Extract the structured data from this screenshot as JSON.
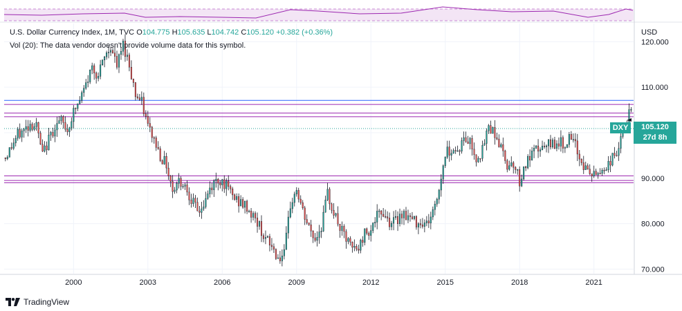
{
  "chart_data": {
    "type": "candlestick",
    "symbol": "DXY",
    "title": "U.S. Dollar Currency Index, 1M, TVC",
    "ohlc": {
      "open_label": "O",
      "open": "104.775",
      "high_label": "H",
      "high": "105.635",
      "low_label": "L",
      "low": "104.742",
      "close_label": "C",
      "close": "105.120",
      "change": "+0.382",
      "change_pct": "(+0.36%)"
    },
    "volume_note": "Vol (20): The data vendor doesn't provide volume data for this symbol.",
    "currency": "USD",
    "y_ticks": [
      "120.000",
      "110.000",
      "100.000",
      "90.000",
      "80.000",
      "70.000"
    ],
    "x_ticks": [
      "2000",
      "2003",
      "2006",
      "2009",
      "2012",
      "2015",
      "2018",
      "2021"
    ],
    "ylim": [
      69,
      124
    ],
    "xlim": [
      1997.2,
      2022.6
    ],
    "last_price": "105.120",
    "countdown": "27d 8h",
    "horizontal_lines": [
      {
        "y": 107.1,
        "color": "#2962ff"
      },
      {
        "y": 106.2,
        "color": "#9c27b0"
      },
      {
        "y": 104.3,
        "color": "#9c27b0"
      },
      {
        "y": 103.5,
        "color": "#9c27b0"
      },
      {
        "y": 90.5,
        "color": "#9c27b0"
      },
      {
        "y": 89.5,
        "color": "#9c27b0"
      },
      {
        "y": 89.0,
        "color": "#9c27b0"
      }
    ],
    "series_close": [
      [
        1997.25,
        94.5
      ],
      [
        1997.5,
        97.0
      ],
      [
        1997.75,
        99.5
      ],
      [
        1998.0,
        100.5
      ],
      [
        1998.25,
        102.0
      ],
      [
        1998.5,
        101.5
      ],
      [
        1998.75,
        95.0
      ],
      [
        1999.0,
        98.5
      ],
      [
        1999.25,
        101.5
      ],
      [
        1999.5,
        102.5
      ],
      [
        1999.75,
        100.5
      ],
      [
        2000.0,
        104.5
      ],
      [
        2000.25,
        107.0
      ],
      [
        2000.5,
        110.5
      ],
      [
        2000.75,
        114.5
      ],
      [
        2001.0,
        112.5
      ],
      [
        2001.25,
        116.5
      ],
      [
        2001.5,
        119.0
      ],
      [
        2001.75,
        114.5
      ],
      [
        2002.0,
        119.5
      ],
      [
        2002.25,
        115.0
      ],
      [
        2002.5,
        108.5
      ],
      [
        2002.75,
        106.5
      ],
      [
        2003.0,
        101.5
      ],
      [
        2003.25,
        98.5
      ],
      [
        2003.5,
        95.0
      ],
      [
        2003.75,
        93.0
      ],
      [
        2004.0,
        87.5
      ],
      [
        2004.25,
        89.5
      ],
      [
        2004.5,
        88.5
      ],
      [
        2004.75,
        85.5
      ],
      [
        2005.0,
        82.5
      ],
      [
        2005.25,
        84.0
      ],
      [
        2005.5,
        87.5
      ],
      [
        2005.75,
        89.5
      ],
      [
        2006.0,
        89.5
      ],
      [
        2006.25,
        87.5
      ],
      [
        2006.5,
        85.5
      ],
      [
        2006.75,
        84.5
      ],
      [
        2007.0,
        83.5
      ],
      [
        2007.25,
        81.5
      ],
      [
        2007.5,
        79.5
      ],
      [
        2007.75,
        76.5
      ],
      [
        2008.0,
        75.0
      ],
      [
        2008.25,
        72.5
      ],
      [
        2008.5,
        73.0
      ],
      [
        2008.75,
        84.0
      ],
      [
        2009.0,
        87.5
      ],
      [
        2009.25,
        82.5
      ],
      [
        2009.5,
        79.0
      ],
      [
        2009.75,
        76.5
      ],
      [
        2010.0,
        79.5
      ],
      [
        2010.25,
        86.5
      ],
      [
        2010.5,
        82.5
      ],
      [
        2010.75,
        79.0
      ],
      [
        2011.0,
        76.5
      ],
      [
        2011.25,
        74.5
      ],
      [
        2011.5,
        74.5
      ],
      [
        2011.75,
        78.0
      ],
      [
        2012.0,
        79.0
      ],
      [
        2012.25,
        81.5
      ],
      [
        2012.5,
        82.5
      ],
      [
        2012.75,
        80.5
      ],
      [
        2013.0,
        80.5
      ],
      [
        2013.25,
        82.5
      ],
      [
        2013.5,
        81.5
      ],
      [
        2013.75,
        80.5
      ],
      [
        2014.0,
        80.5
      ],
      [
        2014.25,
        80.0
      ],
      [
        2014.5,
        82.5
      ],
      [
        2014.75,
        87.5
      ],
      [
        2015.0,
        95.5
      ],
      [
        2015.25,
        96.5
      ],
      [
        2015.5,
        96.0
      ],
      [
        2015.75,
        98.5
      ],
      [
        2016.0,
        98.0
      ],
      [
        2016.25,
        94.5
      ],
      [
        2016.5,
        96.0
      ],
      [
        2016.75,
        101.5
      ],
      [
        2017.0,
        100.0
      ],
      [
        2017.25,
        96.5
      ],
      [
        2017.5,
        93.0
      ],
      [
        2017.75,
        93.5
      ],
      [
        2018.0,
        89.5
      ],
      [
        2018.25,
        93.0
      ],
      [
        2018.5,
        95.0
      ],
      [
        2018.75,
        96.5
      ],
      [
        2019.0,
        96.5
      ],
      [
        2019.25,
        97.5
      ],
      [
        2019.5,
        98.0
      ],
      [
        2019.75,
        97.5
      ],
      [
        2020.0,
        98.5
      ],
      [
        2020.25,
        97.0
      ],
      [
        2020.5,
        93.5
      ],
      [
        2020.75,
        91.5
      ],
      [
        2021.0,
        90.5
      ],
      [
        2021.25,
        91.5
      ],
      [
        2021.5,
        92.5
      ],
      [
        2021.75,
        94.5
      ],
      [
        2022.0,
        96.5
      ],
      [
        2022.25,
        101.5
      ],
      [
        2022.5,
        105.1
      ]
    ]
  },
  "brand": {
    "name": "TradingView"
  }
}
